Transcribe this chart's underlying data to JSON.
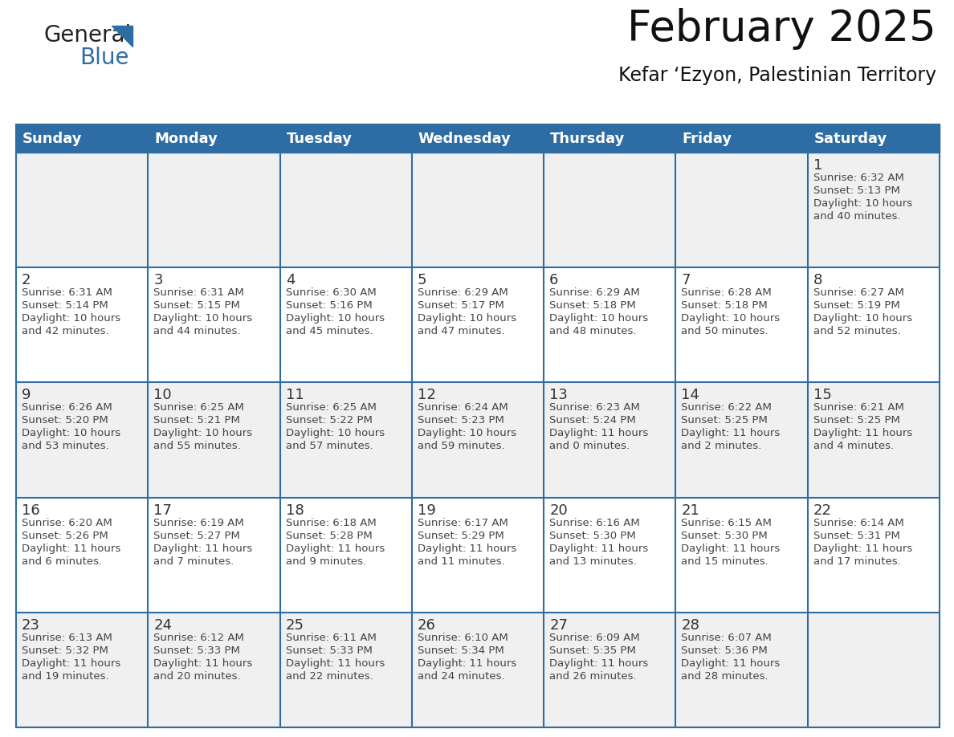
{
  "title": "February 2025",
  "subtitle": "Kefar ‘Ezyon, Palestinian Territory",
  "header_bg": "#2E6DA4",
  "header_text_color": "#FFFFFF",
  "cell_bg_even": "#F0F0F0",
  "cell_bg_odd": "#FFFFFF",
  "border_color": "#2E6DA4",
  "day_names": [
    "Sunday",
    "Monday",
    "Tuesday",
    "Wednesday",
    "Thursday",
    "Friday",
    "Saturday"
  ],
  "days": [
    {
      "day": 1,
      "col": 6,
      "row": 0,
      "sunrise": "6:32 AM",
      "sunset": "5:13 PM",
      "daylight": "10 hours and 40 minutes."
    },
    {
      "day": 2,
      "col": 0,
      "row": 1,
      "sunrise": "6:31 AM",
      "sunset": "5:14 PM",
      "daylight": "10 hours and 42 minutes."
    },
    {
      "day": 3,
      "col": 1,
      "row": 1,
      "sunrise": "6:31 AM",
      "sunset": "5:15 PM",
      "daylight": "10 hours and 44 minutes."
    },
    {
      "day": 4,
      "col": 2,
      "row": 1,
      "sunrise": "6:30 AM",
      "sunset": "5:16 PM",
      "daylight": "10 hours and 45 minutes."
    },
    {
      "day": 5,
      "col": 3,
      "row": 1,
      "sunrise": "6:29 AM",
      "sunset": "5:17 PM",
      "daylight": "10 hours and 47 minutes."
    },
    {
      "day": 6,
      "col": 4,
      "row": 1,
      "sunrise": "6:29 AM",
      "sunset": "5:18 PM",
      "daylight": "10 hours and 48 minutes."
    },
    {
      "day": 7,
      "col": 5,
      "row": 1,
      "sunrise": "6:28 AM",
      "sunset": "5:18 PM",
      "daylight": "10 hours and 50 minutes."
    },
    {
      "day": 8,
      "col": 6,
      "row": 1,
      "sunrise": "6:27 AM",
      "sunset": "5:19 PM",
      "daylight": "10 hours and 52 minutes."
    },
    {
      "day": 9,
      "col": 0,
      "row": 2,
      "sunrise": "6:26 AM",
      "sunset": "5:20 PM",
      "daylight": "10 hours and 53 minutes."
    },
    {
      "day": 10,
      "col": 1,
      "row": 2,
      "sunrise": "6:25 AM",
      "sunset": "5:21 PM",
      "daylight": "10 hours and 55 minutes."
    },
    {
      "day": 11,
      "col": 2,
      "row": 2,
      "sunrise": "6:25 AM",
      "sunset": "5:22 PM",
      "daylight": "10 hours and 57 minutes."
    },
    {
      "day": 12,
      "col": 3,
      "row": 2,
      "sunrise": "6:24 AM",
      "sunset": "5:23 PM",
      "daylight": "10 hours and 59 minutes."
    },
    {
      "day": 13,
      "col": 4,
      "row": 2,
      "sunrise": "6:23 AM",
      "sunset": "5:24 PM",
      "daylight": "11 hours and 0 minutes."
    },
    {
      "day": 14,
      "col": 5,
      "row": 2,
      "sunrise": "6:22 AM",
      "sunset": "5:25 PM",
      "daylight": "11 hours and 2 minutes."
    },
    {
      "day": 15,
      "col": 6,
      "row": 2,
      "sunrise": "6:21 AM",
      "sunset": "5:25 PM",
      "daylight": "11 hours and 4 minutes."
    },
    {
      "day": 16,
      "col": 0,
      "row": 3,
      "sunrise": "6:20 AM",
      "sunset": "5:26 PM",
      "daylight": "11 hours and 6 minutes."
    },
    {
      "day": 17,
      "col": 1,
      "row": 3,
      "sunrise": "6:19 AM",
      "sunset": "5:27 PM",
      "daylight": "11 hours and 7 minutes."
    },
    {
      "day": 18,
      "col": 2,
      "row": 3,
      "sunrise": "6:18 AM",
      "sunset": "5:28 PM",
      "daylight": "11 hours and 9 minutes."
    },
    {
      "day": 19,
      "col": 3,
      "row": 3,
      "sunrise": "6:17 AM",
      "sunset": "5:29 PM",
      "daylight": "11 hours and 11 minutes."
    },
    {
      "day": 20,
      "col": 4,
      "row": 3,
      "sunrise": "6:16 AM",
      "sunset": "5:30 PM",
      "daylight": "11 hours and 13 minutes."
    },
    {
      "day": 21,
      "col": 5,
      "row": 3,
      "sunrise": "6:15 AM",
      "sunset": "5:30 PM",
      "daylight": "11 hours and 15 minutes."
    },
    {
      "day": 22,
      "col": 6,
      "row": 3,
      "sunrise": "6:14 AM",
      "sunset": "5:31 PM",
      "daylight": "11 hours and 17 minutes."
    },
    {
      "day": 23,
      "col": 0,
      "row": 4,
      "sunrise": "6:13 AM",
      "sunset": "5:32 PM",
      "daylight": "11 hours and 19 minutes."
    },
    {
      "day": 24,
      "col": 1,
      "row": 4,
      "sunrise": "6:12 AM",
      "sunset": "5:33 PM",
      "daylight": "11 hours and 20 minutes."
    },
    {
      "day": 25,
      "col": 2,
      "row": 4,
      "sunrise": "6:11 AM",
      "sunset": "5:33 PM",
      "daylight": "11 hours and 22 minutes."
    },
    {
      "day": 26,
      "col": 3,
      "row": 4,
      "sunrise": "6:10 AM",
      "sunset": "5:34 PM",
      "daylight": "11 hours and 24 minutes."
    },
    {
      "day": 27,
      "col": 4,
      "row": 4,
      "sunrise": "6:09 AM",
      "sunset": "5:35 PM",
      "daylight": "11 hours and 26 minutes."
    },
    {
      "day": 28,
      "col": 5,
      "row": 4,
      "sunrise": "6:07 AM",
      "sunset": "5:36 PM",
      "daylight": "11 hours and 28 minutes."
    }
  ],
  "num_rows": 5,
  "num_cols": 7,
  "logo_general_color": "#222222",
  "logo_blue_color": "#2E6DA4",
  "title_fontsize": 38,
  "subtitle_fontsize": 17,
  "day_header_fontsize": 13,
  "day_num_fontsize": 12,
  "cell_text_fontsize": 9.5
}
